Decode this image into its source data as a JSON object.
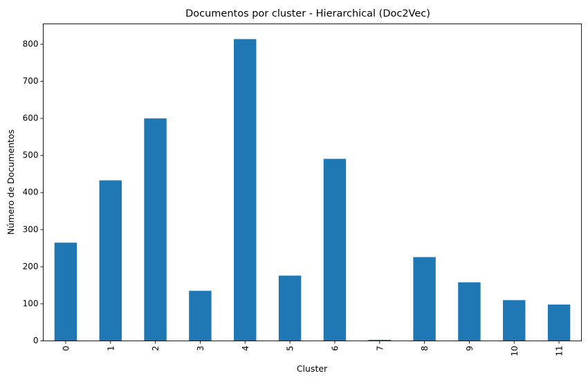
{
  "chart_data": {
    "type": "bar",
    "title": "Documentos por cluster - Hierarchical (Doc2Vec)",
    "xlabel": "Cluster",
    "ylabel": "Número de Documentos",
    "categories": [
      "0",
      "1",
      "2",
      "3",
      "4",
      "5",
      "6",
      "7",
      "8",
      "9",
      "10",
      "11"
    ],
    "values": [
      265,
      433,
      600,
      135,
      814,
      176,
      491,
      3,
      226,
      158,
      110,
      98
    ],
    "ylim": [
      0,
      855
    ],
    "yticks": [
      0,
      100,
      200,
      300,
      400,
      500,
      600,
      700,
      800
    ],
    "grid": false,
    "legend": "none",
    "bar_color": "#1f77b4"
  }
}
